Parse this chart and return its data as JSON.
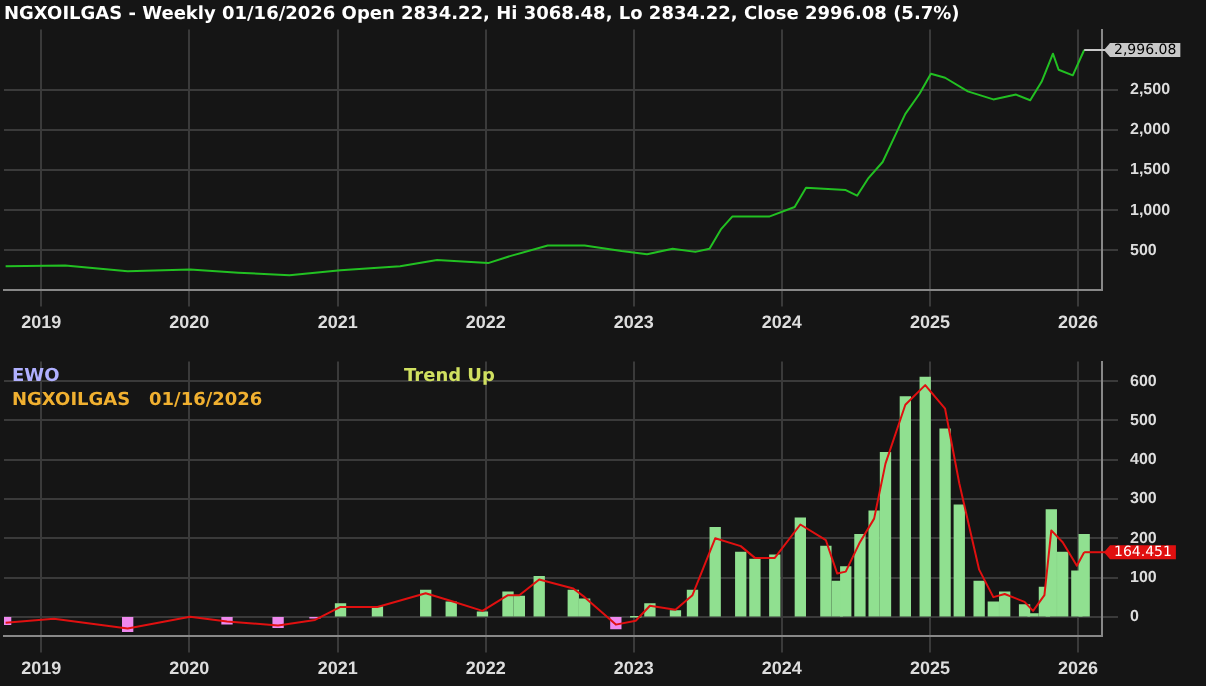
{
  "chart_data": [
    {
      "type": "line",
      "title": "NGXOILGAS - Weekly 01/16/2026 Open 2834.22, Hi 3068.48, Lo 2834.22, Close 2996.08 (5.7%)",
      "x": [
        "2018-10-05",
        "2019-03-01",
        "2019-08-02",
        "2020-01-03",
        "2020-05-01",
        "2020-09-04",
        "2021-01-08",
        "2021-06-04",
        "2021-09-03",
        "2022-01-07",
        "2022-03-04",
        "2022-06-03",
        "2022-09-02",
        "2022-12-02",
        "2023-02-03",
        "2023-04-07",
        "2023-06-02",
        "2023-07-07",
        "2023-08-04",
        "2023-09-01",
        "2023-12-01",
        "2024-02-02",
        "2024-03-01",
        "2024-06-07",
        "2024-07-05",
        "2024-08-02",
        "2024-09-06",
        "2024-10-04",
        "2024-11-01",
        "2024-12-06",
        "2025-01-03",
        "2025-02-07",
        "2025-04-04",
        "2025-06-06",
        "2025-08-01",
        "2025-09-05",
        "2025-10-03",
        "2025-10-31",
        "2025-11-14",
        "2025-12-19",
        "2026-01-16"
      ],
      "series": [
        {
          "color": "#22c022",
          "values": [
            300,
            310,
            240,
            260,
            220,
            190,
            250,
            300,
            380,
            340,
            430,
            560,
            560,
            490,
            450,
            520,
            480,
            520,
            760,
            920,
            920,
            1040,
            1280,
            1250,
            1180,
            1400,
            1600,
            1900,
            2200,
            2450,
            2700,
            2650,
            2480,
            2380,
            2440,
            2370,
            2600,
            2950,
            2750,
            2680,
            2996.08
          ]
        }
      ],
      "xlim": [
        "2018-10-01",
        "2026-03-01"
      ],
      "xticks": [
        "2019",
        "2020",
        "2021",
        "2022",
        "2023",
        "2024",
        "2025",
        "2026"
      ],
      "ylim": [
        0,
        3250
      ],
      "yticks": [
        {
          "value": 500,
          "label": "500"
        },
        {
          "value": 1000,
          "label": "1,000"
        },
        {
          "value": 1500,
          "label": "1,500"
        },
        {
          "value": 2000,
          "label": "2,000"
        },
        {
          "value": 2500,
          "label": "2,500"
        }
      ],
      "grid": true,
      "legend": false,
      "annotations": [
        {
          "text": "2,996.08",
          "x": "2026-01-16",
          "y": 2996.08
        }
      ]
    },
    {
      "type": "bar",
      "subtitle": "EWO",
      "x": [
        "2018-10-05",
        "2019-02-01",
        "2019-08-02",
        "2020-01-03",
        "2020-04-03",
        "2020-08-07",
        "2020-11-06",
        "2021-01-08",
        "2021-04-09",
        "2021-08-06",
        "2021-10-08",
        "2021-12-24",
        "2022-02-25",
        "2022-03-25",
        "2022-05-13",
        "2022-08-05",
        "2022-09-02",
        "2022-11-18",
        "2023-01-06",
        "2023-02-10",
        "2023-04-14",
        "2023-05-26",
        "2023-07-21",
        "2023-09-22",
        "2023-10-27",
        "2023-12-15",
        "2024-02-16",
        "2024-04-19",
        "2024-05-17",
        "2024-06-07",
        "2024-07-12",
        "2024-08-16",
        "2024-09-13",
        "2024-11-01",
        "2024-12-20",
        "2025-02-07",
        "2025-03-14",
        "2025-05-02",
        "2025-06-06",
        "2025-07-04",
        "2025-08-22",
        "2025-09-12",
        "2025-10-10",
        "2025-10-27",
        "2025-11-24",
        "2025-12-29",
        "2026-01-16"
      ],
      "series": [
        {
          "type": "bar",
          "colors": [
            "#ee88ee",
            "#ee88ee",
            "#ee88ee",
            "#90e090",
            "#ee88ee",
            "#ee88ee",
            "#ee88ee",
            "#90e090",
            "#90e090",
            "#90e090",
            "#90e090",
            "#90e090",
            "#90e090",
            "#90e090",
            "#90e090",
            "#90e090",
            "#90e090",
            "#ee88ee",
            "#90e090",
            "#90e090",
            "#90e090",
            "#90e090",
            "#90e090",
            "#90e090",
            "#90e090",
            "#90e090",
            "#90e090",
            "#90e090",
            "#90e090",
            "#90e090",
            "#90e090",
            "#90e090",
            "#90e090",
            "#90e090",
            "#90e090",
            "#90e090",
            "#90e090",
            "#90e090",
            "#90e090",
            "#90e090",
            "#90e090",
            "#90e090",
            "#90e090",
            "#90e090",
            "#90e090",
            "#90e090",
            "#90e090"
          ],
          "values": [
            -19,
            null,
            -37,
            null,
            -18,
            -27,
            -3,
            33,
            25,
            67,
            37,
            12,
            63,
            52,
            102,
            67,
            45,
            -30,
            0,
            33,
            15,
            67,
            227,
            164,
            146,
            157,
            251,
            179,
            90,
            127,
            209,
            269,
            418,
            560,
            610,
            478,
            284,
            90,
            37,
            63,
            30,
            7,
            75,
            272,
            164,
            116,
            209
          ]
        },
        {
          "type": "line",
          "color": "#e01010",
          "values": [
            -15,
            -5,
            -30,
            0,
            -12,
            -22,
            -8,
            25,
            25,
            60,
            40,
            15,
            55,
            55,
            95,
            72,
            50,
            -20,
            -10,
            28,
            18,
            55,
            200,
            180,
            150,
            150,
            235,
            195,
            110,
            115,
            190,
            250,
            390,
            540,
            590,
            530,
            340,
            120,
            50,
            58,
            38,
            15,
            55,
            220,
            190,
            130,
            164.451
          ]
        }
      ],
      "xlim": [
        "2018-10-01",
        "2026-03-01"
      ],
      "xticks": [
        "2019",
        "2020",
        "2021",
        "2022",
        "2023",
        "2024",
        "2025",
        "2026"
      ],
      "ylim": [
        -50,
        650
      ],
      "yticks": [
        0,
        100,
        200,
        300,
        400,
        500,
        600
      ],
      "grid": true,
      "legend": false,
      "annotations": [
        "NGXOILGAS   01/16/2026",
        "Trend Up",
        {
          "text": "164.451",
          "x": "2026-01-16",
          "y": 164.451
        }
      ]
    }
  ]
}
